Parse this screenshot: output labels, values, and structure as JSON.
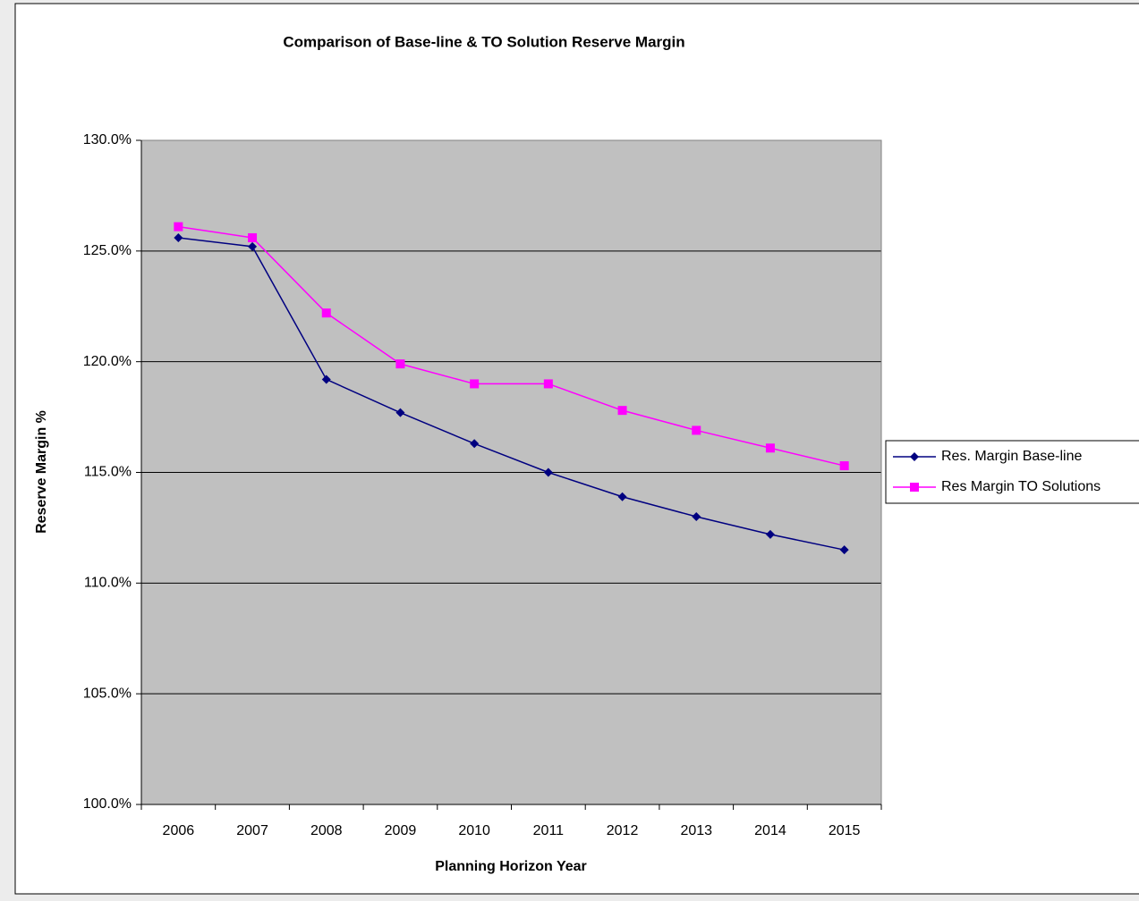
{
  "chart_data": {
    "type": "line",
    "title": "Comparison of Base-line & TO Solution Reserve Margin",
    "x_label": "Planning Horizon Year",
    "y_label": "Reserve Margin %",
    "categories": [
      "2006",
      "2007",
      "2008",
      "2009",
      "2010",
      "2011",
      "2012",
      "2013",
      "2014",
      "2015"
    ],
    "series": [
      {
        "name": "Res. Margin Base-line",
        "color": "#000080",
        "marker": "diamond",
        "values": [
          125.6,
          125.2,
          119.2,
          117.7,
          116.3,
          115.0,
          113.9,
          113.0,
          112.2,
          111.5
        ]
      },
      {
        "name": "Res Margin TO Solutions",
        "color": "#ff00ff",
        "marker": "square",
        "values": [
          126.1,
          125.6,
          122.2,
          119.9,
          119.0,
          119.0,
          117.8,
          116.9,
          116.1,
          115.3
        ]
      }
    ],
    "ylim": [
      100,
      130
    ],
    "yticks": [
      {
        "value": 100,
        "label": "100.0%"
      },
      {
        "value": 105,
        "label": "105.0%"
      },
      {
        "value": 110,
        "label": "110.0%"
      },
      {
        "value": 115,
        "label": "115.0%"
      },
      {
        "value": 120,
        "label": "120.0%"
      },
      {
        "value": 125,
        "label": "125.0%"
      },
      {
        "value": 130,
        "label": "130.0%"
      }
    ],
    "grid": true,
    "plot_background": "#c0c0c0",
    "legend": "right"
  }
}
